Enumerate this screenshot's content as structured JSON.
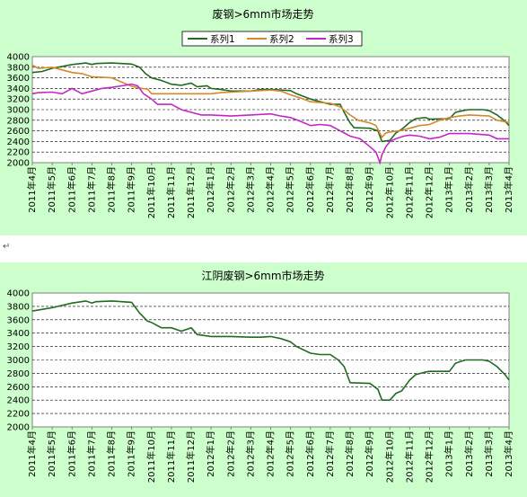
{
  "chart_data": [
    {
      "type": "line",
      "title": "废钢>6mm市场走势",
      "ylim": [
        2000,
        4000
      ],
      "yticks": [
        2000,
        2200,
        2400,
        2600,
        2800,
        3000,
        3200,
        3400,
        3600,
        3800,
        4000
      ],
      "grid": true,
      "legend_position": "top",
      "x_tick_labels": [
        "2011年4月",
        "2011年5月",
        "2011年6月",
        "2011年7月",
        "2011年8月",
        "2011年9月",
        "2011年10月",
        "2011年11月",
        "2011年12月",
        "2012年1月",
        "2012年2月",
        "2012年3月",
        "2012年4月",
        "2012年5月",
        "2012年6月",
        "2012年7月",
        "2012年8月",
        "2012年9月",
        "2012年10月",
        "2012年11月",
        "2012年12月",
        "2013年1月",
        "2013年2月",
        "2013年3月",
        "2013年4月"
      ],
      "series": [
        {
          "name": "系列1",
          "color": "#1f6b1f",
          "points": [
            [
              0,
              3700
            ],
            [
              0.5,
              3720
            ],
            [
              1,
              3780
            ],
            [
              2,
              3850
            ],
            [
              2.7,
              3880
            ],
            [
              3,
              3850
            ],
            [
              3.2,
              3870
            ],
            [
              4,
              3880
            ],
            [
              5,
              3860
            ],
            [
              5.4,
              3800
            ],
            [
              5.7,
              3680
            ],
            [
              6,
              3600
            ],
            [
              6.5,
              3550
            ],
            [
              7,
              3480
            ],
            [
              7.5,
              3460
            ],
            [
              8,
              3500
            ],
            [
              8.3,
              3430
            ],
            [
              8.8,
              3450
            ],
            [
              9,
              3400
            ],
            [
              9.5,
              3380
            ],
            [
              10,
              3350
            ],
            [
              11,
              3350
            ],
            [
              11.5,
              3380
            ],
            [
              12,
              3380
            ],
            [
              13,
              3360
            ],
            [
              13.3,
              3300
            ],
            [
              14,
              3200
            ],
            [
              14.5,
              3150
            ],
            [
              15,
              3100
            ],
            [
              15.5,
              3100
            ],
            [
              15.7,
              2950
            ],
            [
              16,
              2750
            ],
            [
              16.2,
              2660
            ],
            [
              17,
              2650
            ],
            [
              17.4,
              2600
            ],
            [
              17.6,
              2400
            ],
            [
              18,
              2420
            ],
            [
              18.3,
              2560
            ],
            [
              18.6,
              2630
            ],
            [
              19,
              2760
            ],
            [
              19.3,
              2830
            ],
            [
              19.8,
              2850
            ],
            [
              20,
              2820
            ],
            [
              21,
              2830
            ],
            [
              21.3,
              2950
            ],
            [
              21.8,
              2990
            ],
            [
              22,
              3000
            ],
            [
              22.7,
              3000
            ],
            [
              23,
              2980
            ],
            [
              23.4,
              2900
            ],
            [
              23.8,
              2780
            ],
            [
              24,
              2700
            ]
          ]
        },
        {
          "name": "系列2",
          "color": "#d4892b",
          "points": [
            [
              0,
              3840
            ],
            [
              0.3,
              3780
            ],
            [
              1,
              3800
            ],
            [
              1.5,
              3750
            ],
            [
              2,
              3700
            ],
            [
              2.5,
              3680
            ],
            [
              3,
              3620
            ],
            [
              4,
              3600
            ],
            [
              4.5,
              3520
            ],
            [
              5,
              3440
            ],
            [
              5.5,
              3400
            ],
            [
              5.8,
              3390
            ],
            [
              6,
              3300
            ],
            [
              7,
              3300
            ],
            [
              8,
              3300
            ],
            [
              8.5,
              3300
            ],
            [
              9,
              3300
            ],
            [
              9.5,
              3320
            ],
            [
              10,
              3330
            ],
            [
              11,
              3350
            ],
            [
              12,
              3370
            ],
            [
              12.5,
              3350
            ],
            [
              13,
              3280
            ],
            [
              13.5,
              3220
            ],
            [
              14,
              3150
            ],
            [
              15,
              3120
            ],
            [
              15.5,
              3050
            ],
            [
              16,
              2900
            ],
            [
              16.4,
              2800
            ],
            [
              17,
              2750
            ],
            [
              17.3,
              2700
            ],
            [
              17.6,
              2480
            ],
            [
              17.8,
              2560
            ],
            [
              18,
              2580
            ],
            [
              18.5,
              2600
            ],
            [
              19,
              2650
            ],
            [
              19.5,
              2700
            ],
            [
              20,
              2720
            ],
            [
              20.5,
              2800
            ],
            [
              21,
              2850
            ],
            [
              21.5,
              2880
            ],
            [
              22,
              2900
            ],
            [
              23,
              2880
            ],
            [
              23.4,
              2800
            ],
            [
              24,
              2760
            ]
          ]
        },
        {
          "name": "系列3",
          "color": "#c428c4",
          "points": [
            [
              0,
              3300
            ],
            [
              0.3,
              3320
            ],
            [
              1,
              3330
            ],
            [
              1.5,
              3300
            ],
            [
              2,
              3400
            ],
            [
              2.5,
              3300
            ],
            [
              3,
              3350
            ],
            [
              3.5,
              3400
            ],
            [
              4,
              3420
            ],
            [
              4.5,
              3450
            ],
            [
              5,
              3480
            ],
            [
              5.3,
              3450
            ],
            [
              5.6,
              3300
            ],
            [
              6,
              3200
            ],
            [
              6.3,
              3100
            ],
            [
              7,
              3100
            ],
            [
              7.5,
              3000
            ],
            [
              8,
              2950
            ],
            [
              8.5,
              2900
            ],
            [
              9,
              2900
            ],
            [
              10,
              2880
            ],
            [
              11,
              2900
            ],
            [
              12,
              2920
            ],
            [
              12.5,
              2880
            ],
            [
              13,
              2850
            ],
            [
              13.5,
              2780
            ],
            [
              14,
              2700
            ],
            [
              14.5,
              2720
            ],
            [
              15,
              2700
            ],
            [
              15.5,
              2600
            ],
            [
              16,
              2500
            ],
            [
              16.5,
              2450
            ],
            [
              17,
              2300
            ],
            [
              17.3,
              2200
            ],
            [
              17.5,
              2000
            ],
            [
              17.6,
              2150
            ],
            [
              17.8,
              2300
            ],
            [
              18,
              2400
            ],
            [
              18.3,
              2450
            ],
            [
              18.7,
              2500
            ],
            [
              19,
              2520
            ],
            [
              19.5,
              2500
            ],
            [
              20,
              2450
            ],
            [
              20.5,
              2480
            ],
            [
              21,
              2550
            ],
            [
              22,
              2550
            ],
            [
              23,
              2520
            ],
            [
              23.4,
              2450
            ],
            [
              24,
              2450
            ]
          ]
        }
      ]
    },
    {
      "type": "line",
      "title": "江阴废钢>6mm市场走势",
      "ylim": [
        2000,
        4000
      ],
      "yticks": [
        2000,
        2200,
        2400,
        2600,
        2800,
        3000,
        3200,
        3400,
        3600,
        3800,
        4000
      ],
      "grid": true,
      "x_tick_labels": [
        "2011年4月",
        "2011年5月",
        "2011年6月",
        "2011年7月",
        "2011年8月",
        "2011年9月",
        "2011年10月",
        "2011年11月",
        "2011年12月",
        "2012年1月",
        "2012年2月",
        "2012年3月",
        "2012年4月",
        "2012年5月",
        "2012年6月",
        "2012年7月",
        "2012年8月",
        "2012年9月",
        "2012年10月",
        "2012年11月",
        "2012年12月",
        "2013年1月",
        "2013年2月",
        "2013年3月",
        "2013年4月"
      ],
      "series": [
        {
          "color": "#1f6b1f",
          "points": [
            [
              0,
              3730
            ],
            [
              1,
              3780
            ],
            [
              2,
              3850
            ],
            [
              2.7,
              3880
            ],
            [
              3,
              3850
            ],
            [
              3.2,
              3870
            ],
            [
              4,
              3880
            ],
            [
              5,
              3860
            ],
            [
              5.4,
              3700
            ],
            [
              5.8,
              3580
            ],
            [
              6,
              3560
            ],
            [
              6.5,
              3480
            ],
            [
              7,
              3480
            ],
            [
              7.5,
              3430
            ],
            [
              8,
              3480
            ],
            [
              8.3,
              3380
            ],
            [
              9,
              3350
            ],
            [
              10,
              3350
            ],
            [
              11,
              3340
            ],
            [
              11.5,
              3340
            ],
            [
              12,
              3350
            ],
            [
              12.5,
              3320
            ],
            [
              13,
              3270
            ],
            [
              13.3,
              3200
            ],
            [
              14,
              3100
            ],
            [
              14.5,
              3080
            ],
            [
              15,
              3080
            ],
            [
              15.4,
              3000
            ],
            [
              15.7,
              2900
            ],
            [
              16,
              2660
            ],
            [
              17,
              2650
            ],
            [
              17.4,
              2560
            ],
            [
              17.6,
              2400
            ],
            [
              18,
              2400
            ],
            [
              18.3,
              2500
            ],
            [
              18.6,
              2540
            ],
            [
              19,
              2700
            ],
            [
              19.3,
              2780
            ],
            [
              19.8,
              2820
            ],
            [
              20,
              2830
            ],
            [
              21,
              2830
            ],
            [
              21.3,
              2950
            ],
            [
              21.8,
              3000
            ],
            [
              22,
              3000
            ],
            [
              22.7,
              3000
            ],
            [
              23,
              2980
            ],
            [
              23.4,
              2900
            ],
            [
              23.8,
              2780
            ],
            [
              24,
              2700
            ]
          ]
        }
      ]
    }
  ],
  "note_mark": "↵"
}
